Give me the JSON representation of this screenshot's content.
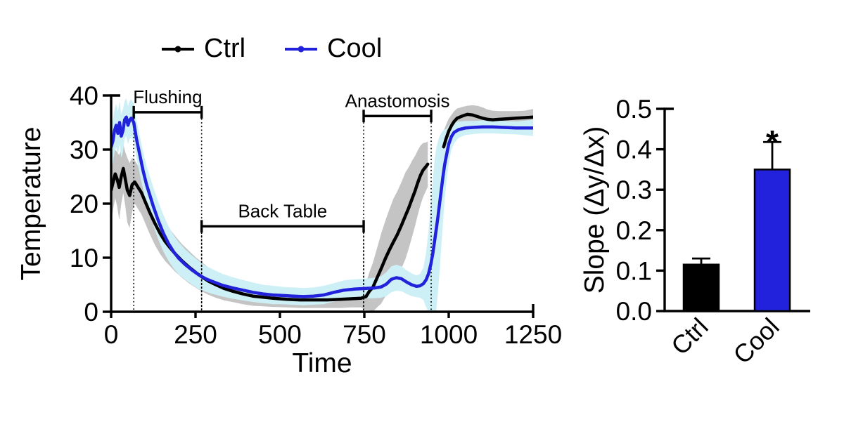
{
  "figure": {
    "background": "#ffffff",
    "legend": {
      "items": [
        {
          "label": "Ctrl",
          "color": "#000000"
        },
        {
          "label": "Cool",
          "color": "#2222DC"
        }
      ]
    }
  },
  "chart_data": [
    {
      "type": "line",
      "name": "temperature-timecourse",
      "xlabel": "Time",
      "ylabel": "Temperature",
      "xlim": [
        0,
        1250
      ],
      "ylim": [
        0,
        40
      ],
      "xticks": [
        0,
        250,
        500,
        750,
        1000,
        1250
      ],
      "yticks": [
        0,
        10,
        20,
        30,
        40
      ],
      "grid": false,
      "legend_position": "top",
      "point_format": "[time, temperature, sd_band]",
      "phase_annotations": [
        {
          "label": "Flushing",
          "x_start": 67,
          "x_end": 268,
          "y": 36.9
        },
        {
          "label": "Back Table",
          "x_start": 268,
          "x_end": 748,
          "y": 15.8
        },
        {
          "label": "Anastomosis",
          "x_start": 748,
          "x_end": 948,
          "y": 36.2
        }
      ],
      "series": [
        {
          "name": "Ctrl",
          "color": "#000000",
          "band_color": "#C4C4C4",
          "segments": [
            [
              [
                0,
                22.5,
                6
              ],
              [
                6,
                24,
                5
              ],
              [
                12,
                25.5,
                4.5
              ],
              [
                18,
                24.5,
                5
              ],
              [
                24,
                23,
                6
              ],
              [
                30,
                25,
                5
              ],
              [
                36,
                26.5,
                4.5
              ],
              [
                42,
                24.5,
                5
              ],
              [
                48,
                22.5,
                6
              ],
              [
                55,
                21.5,
                6
              ],
              [
                62,
                23.5,
                5
              ],
              [
                70,
                24,
                4
              ],
              [
                80,
                23,
                4
              ],
              [
                90,
                22,
                4
              ],
              [
                100,
                20.5,
                4
              ],
              [
                115,
                18.3,
                4
              ],
              [
                130,
                16.3,
                4
              ],
              [
                145,
                14.5,
                3.8
              ],
              [
                160,
                13,
                3.6
              ],
              [
                175,
                11.8,
                3.4
              ],
              [
                190,
                10.7,
                3.3
              ],
              [
                210,
                9.4,
                3.1
              ],
              [
                230,
                8.3,
                3
              ],
              [
                250,
                7.3,
                2.8
              ],
              [
                270,
                6.4,
                2.7
              ],
              [
                290,
                5.6,
                2.5
              ],
              [
                310,
                5,
                2.4
              ],
              [
                335,
                4.3,
                2.2
              ],
              [
                360,
                3.8,
                2
              ],
              [
                390,
                3.3,
                1.9
              ],
              [
                420,
                2.9,
                1.8
              ],
              [
                450,
                2.7,
                1.7
              ],
              [
                480,
                2.5,
                1.6
              ],
              [
                520,
                2.3,
                1.5
              ],
              [
                560,
                2.2,
                1.5
              ],
              [
                600,
                2.2,
                1.5
              ],
              [
                640,
                2.2,
                1.5
              ],
              [
                680,
                2.3,
                1.6
              ],
              [
                710,
                2.4,
                1.6
              ],
              [
                740,
                2.5,
                1.7
              ],
              [
                755,
                2.8,
                2.5
              ],
              [
                765,
                3.8,
                3.5
              ],
              [
                775,
                4.5,
                4.5
              ],
              [
                788,
                6.3,
                5.5
              ],
              [
                800,
                8,
                6.5
              ],
              [
                812,
                9.8,
                7
              ],
              [
                824,
                11.4,
                7.5
              ],
              [
                836,
                12.9,
                8
              ],
              [
                848,
                14.3,
                8
              ],
              [
                860,
                16,
                8
              ],
              [
                872,
                17.8,
                8
              ],
              [
                882,
                19.3,
                7.5
              ],
              [
                892,
                21,
                7
              ],
              [
                900,
                22.3,
                6.5
              ],
              [
                908,
                23.8,
                6
              ],
              [
                916,
                25.2,
                5.5
              ],
              [
                924,
                26.2,
                5
              ],
              [
                932,
                26.8,
                4.5
              ],
              [
                938,
                27.3,
                4.2
              ]
            ],
            [
              [
                985,
                30.5,
                3
              ],
              [
                992,
                32,
                2.6
              ],
              [
                1000,
                33.4,
                2.3
              ],
              [
                1008,
                34.4,
                2
              ],
              [
                1016,
                35.2,
                1.9
              ],
              [
                1025,
                35.8,
                1.8
              ],
              [
                1040,
                36.2,
                1.7
              ],
              [
                1055,
                36.5,
                1.6
              ],
              [
                1070,
                36.4,
                1.8
              ],
              [
                1085,
                36.1,
                2
              ],
              [
                1100,
                35.8,
                2
              ],
              [
                1115,
                35.6,
                1.8
              ],
              [
                1130,
                35.5,
                1.7
              ],
              [
                1150,
                35.6,
                1.5
              ],
              [
                1175,
                35.7,
                1.4
              ],
              [
                1200,
                35.8,
                1.3
              ],
              [
                1225,
                35.9,
                1.3
              ],
              [
                1250,
                36,
                1.5
              ]
            ]
          ]
        },
        {
          "name": "Cool",
          "color": "#2222DC",
          "band_color": "#CDF0F6",
          "segments": [
            [
              [
                0,
                30.5,
                4
              ],
              [
                5,
                31.5,
                4
              ],
              [
                10,
                33.5,
                4
              ],
              [
                15,
                34.5,
                4
              ],
              [
                20,
                33,
                4
              ],
              [
                25,
                35,
                4
              ],
              [
                30,
                32.5,
                4
              ],
              [
                35,
                33.5,
                4
              ],
              [
                40,
                35.5,
                3.5
              ],
              [
                45,
                36,
                3.5
              ],
              [
                50,
                34.5,
                3.5
              ],
              [
                55,
                35.5,
                3.5
              ],
              [
                60,
                35.8,
                3.5
              ],
              [
                67,
                35,
                3.5
              ],
              [
                75,
                32,
                3.5
              ],
              [
                85,
                29,
                3.5
              ],
              [
                95,
                26,
                3.5
              ],
              [
                105,
                23.5,
                3.5
              ],
              [
                115,
                21.5,
                3.5
              ],
              [
                125,
                19.5,
                3.5
              ],
              [
                140,
                16.8,
                3.5
              ],
              [
                155,
                14.5,
                3.4
              ],
              [
                170,
                12.6,
                3.2
              ],
              [
                185,
                11.1,
                3.1
              ],
              [
                200,
                9.9,
                3
              ],
              [
                220,
                8.7,
                2.8
              ],
              [
                240,
                7.7,
                2.7
              ],
              [
                260,
                6.8,
                2.6
              ],
              [
                280,
                6.1,
                2.4
              ],
              [
                300,
                5.6,
                2.3
              ],
              [
                330,
                4.9,
                2.1
              ],
              [
                360,
                4.4,
                2
              ],
              [
                390,
                4,
                1.9
              ],
              [
                420,
                3.6,
                1.8
              ],
              [
                450,
                3.3,
                1.7
              ],
              [
                480,
                3.1,
                1.7
              ],
              [
                510,
                3,
                1.6
              ],
              [
                540,
                2.9,
                1.6
              ],
              [
                570,
                2.8,
                1.6
              ],
              [
                600,
                2.9,
                1.6
              ],
              [
                630,
                3.1,
                1.7
              ],
              [
                660,
                3.6,
                1.7
              ],
              [
                690,
                4,
                1.8
              ],
              [
                720,
                4.2,
                1.8
              ],
              [
                750,
                4.3,
                1.8
              ],
              [
                780,
                4.4,
                1.9
              ],
              [
                800,
                4.6,
                2
              ],
              [
                815,
                5.1,
                2.2
              ],
              [
                830,
                6,
                2.4
              ],
              [
                845,
                6.3,
                2.4
              ],
              [
                860,
                6.1,
                2.3
              ],
              [
                875,
                5.5,
                2.2
              ],
              [
                890,
                5,
                2.1
              ],
              [
                905,
                4.7,
                2
              ],
              [
                915,
                4.8,
                2.2
              ],
              [
                925,
                5.2,
                3
              ],
              [
                933,
                5.9,
                5
              ],
              [
                940,
                7,
                8
              ],
              [
                947,
                8.8,
                11
              ],
              [
                953,
                10.8,
                13.5
              ],
              [
                958,
                13,
                15
              ],
              [
                963,
                15.2,
                15
              ],
              [
                968,
                17.5,
                14
              ],
              [
                973,
                20,
                12.5
              ],
              [
                978,
                22.5,
                10.5
              ],
              [
                983,
                25,
                8.5
              ],
              [
                988,
                27.2,
                6.5
              ],
              [
                993,
                28.8,
                5
              ],
              [
                1000,
                31,
                3.5
              ],
              [
                1008,
                32.4,
                2.5
              ],
              [
                1016,
                33.2,
                2
              ],
              [
                1030,
                33.7,
                1.5
              ],
              [
                1050,
                34,
                1.3
              ],
              [
                1075,
                34.1,
                1.2
              ],
              [
                1100,
                34.2,
                1.2
              ],
              [
                1130,
                34.2,
                1.2
              ],
              [
                1160,
                34.1,
                1.2
              ],
              [
                1200,
                34,
                1.2
              ],
              [
                1250,
                34,
                1.5
              ]
            ]
          ]
        }
      ]
    },
    {
      "type": "bar",
      "name": "slope-comparison",
      "ylabel": "Slope (Δy/Δx)",
      "ylim": [
        0,
        0.5
      ],
      "yticks": [
        0.0,
        0.1,
        0.2,
        0.3,
        0.4,
        0.5
      ],
      "categories": [
        "Ctrl",
        "Cool"
      ],
      "values": [
        0.115,
        0.35
      ],
      "errors": [
        0.015,
        0.068
      ],
      "colors": [
        "#000000",
        "#2222DC"
      ],
      "significance": {
        "label": "*",
        "category": "Cool"
      }
    }
  ]
}
